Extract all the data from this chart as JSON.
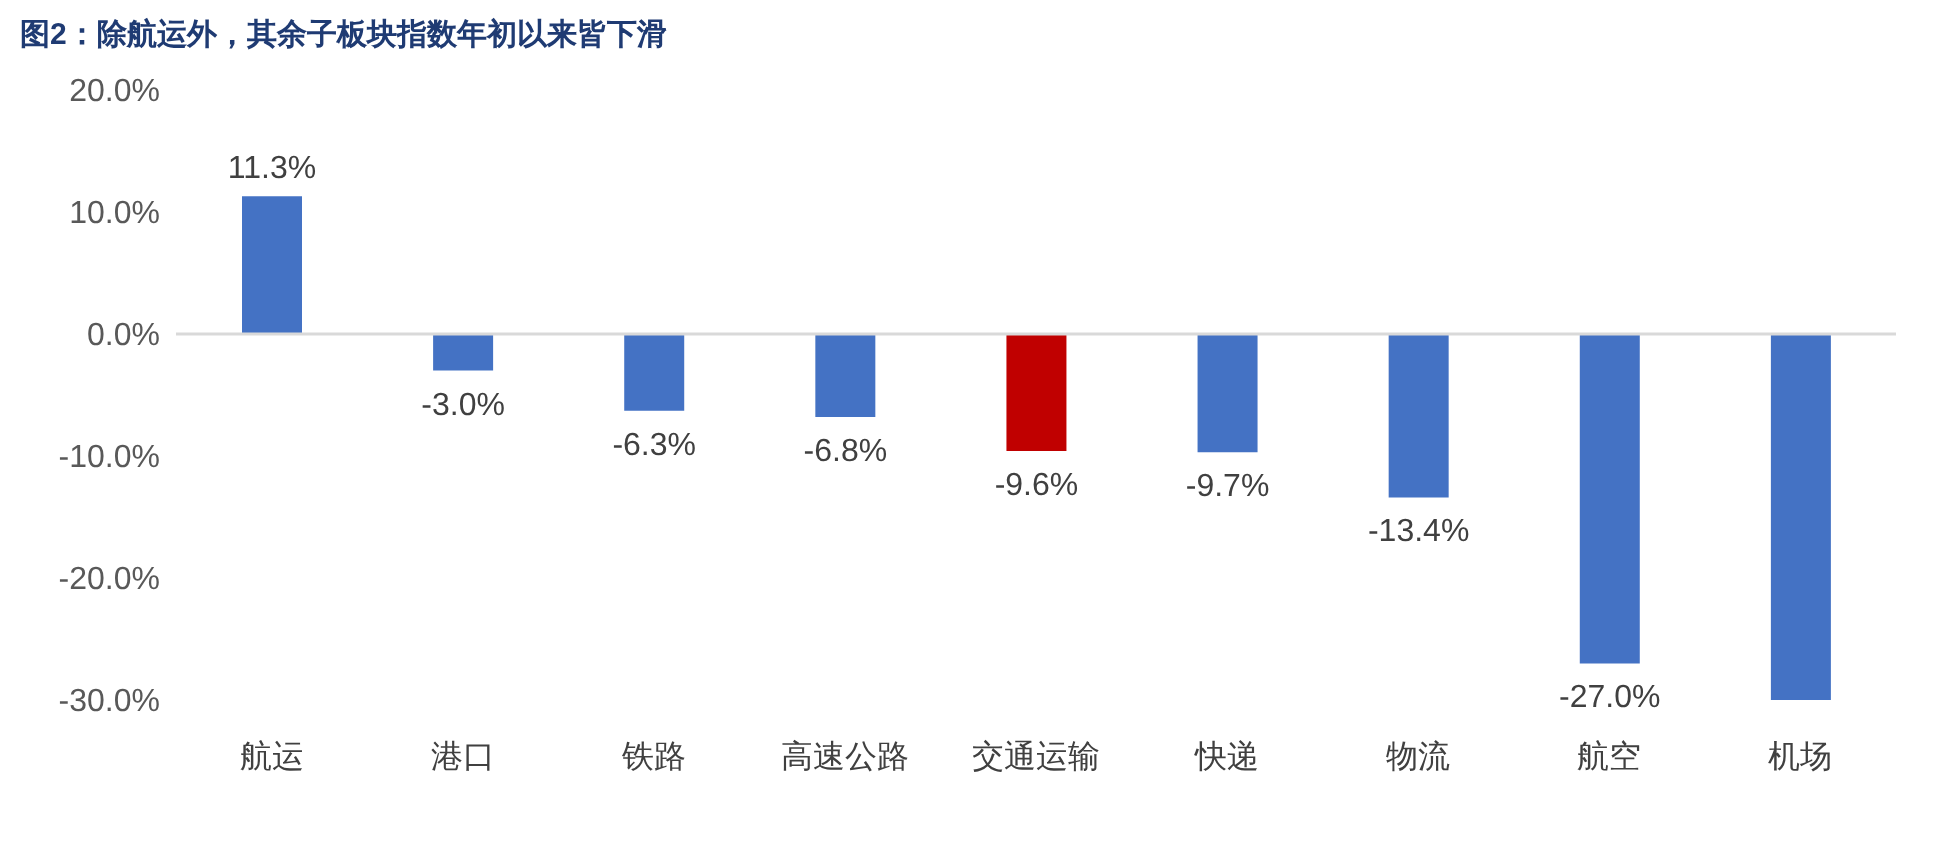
{
  "chart_data": {
    "type": "bar",
    "title": "图2：除航运外，其余子板块指数年初以来皆下滑",
    "categories": [
      "航运",
      "港口",
      "铁路",
      "高速公路",
      "交通运输",
      "快递",
      "物流",
      "航空",
      "机场"
    ],
    "values": [
      11.3,
      -3.0,
      -6.3,
      -6.8,
      -9.6,
      -9.7,
      -13.4,
      -27.0,
      -30
    ],
    "colors": [
      "#4472c4",
      "#4472c4",
      "#4472c4",
      "#4472c4",
      "#c00000",
      "#4472c4",
      "#4472c4",
      "#4472c4",
      "#4472c4"
    ],
    "value_labels": [
      "11.3%",
      "-3.0%",
      "-6.3%",
      "-6.8%",
      "-9.6%",
      "-9.7%",
      "-13.4%",
      "-27.0%",
      null
    ],
    "ylim": [
      -30,
      20
    ],
    "yticks": [
      {
        "value": -30,
        "label": "-30.0%"
      },
      {
        "value": -20,
        "label": "-20.0%"
      },
      {
        "value": -10,
        "label": "-10.0%"
      },
      {
        "value": 0,
        "label": "0.0%"
      },
      {
        "value": 10,
        "label": "10.0%"
      },
      {
        "value": 20,
        "label": "20.0%"
      }
    ],
    "legend": false
  }
}
